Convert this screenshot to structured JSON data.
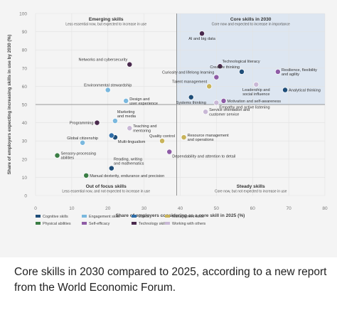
{
  "chart_data": {
    "type": "scatter",
    "title": "",
    "xlabel": "Share of employers considering as a core skill in 2025 (%)",
    "ylabel": "Share of employers expecting increasing skills in use by 2030 (%)",
    "xlim": [
      0,
      80
    ],
    "ylim": [
      0,
      100
    ],
    "x_ticks": [
      "0",
      "10",
      "20",
      "30",
      "40",
      "50",
      "60",
      "70",
      "80"
    ],
    "y_ticks": [
      "0",
      "10",
      "20",
      "30",
      "40",
      "50",
      "60",
      "70",
      "80",
      "90",
      "100"
    ],
    "grid": true,
    "legend_position": "bottom",
    "dividers": {
      "x": 39,
      "y": 50
    },
    "quadrants": [
      {
        "title": "Emerging skills",
        "subtitle": "Less essential now, but expected to increase in use",
        "pos": "top-left"
      },
      {
        "title": "Core skills in 2030",
        "subtitle": "Core now and expected to increase in importance",
        "pos": "top-right"
      },
      {
        "title": "Out of focus skills",
        "subtitle": "Less essential now, and not expected to increase in use",
        "pos": "bottom-left"
      },
      {
        "title": "Steady skills",
        "subtitle": "Core now, but not expected to increase in use",
        "pos": "bottom-right"
      }
    ],
    "categories": [
      {
        "name": "Cognitive skills",
        "color": "#1f4e79"
      },
      {
        "name": "Engagement skills",
        "color": "#7ab8de"
      },
      {
        "name": "Ethics",
        "color": "#2f6ea8"
      },
      {
        "name": "Management skills",
        "color": "#c8b35a"
      },
      {
        "name": "Physical abilities",
        "color": "#3a7d44"
      },
      {
        "name": "Self-efficacy",
        "color": "#8e5ca6"
      },
      {
        "name": "Technology skills",
        "color": "#4a2a4e"
      },
      {
        "name": "Working with others",
        "color": "#c9b8d6"
      }
    ],
    "points": [
      {
        "label": "AI and big data",
        "x": 46,
        "y": 89,
        "category": "Technology skills",
        "label_pos": "below"
      },
      {
        "label": "Technological literacy",
        "x": 51,
        "y": 71,
        "category": "Technology skills",
        "label_pos": "above-right"
      },
      {
        "label": "Networks and cybersecurity",
        "x": 26,
        "y": 72,
        "category": "Technology skills",
        "label_pos": "above-left"
      },
      {
        "label": "Creative thinking",
        "x": 57,
        "y": 68,
        "category": "Cognitive skills",
        "label_pos": "above-left"
      },
      {
        "label": "Resilience, flexibility\nand agility",
        "x": 67,
        "y": 68,
        "category": "Self-efficacy",
        "label_pos": "right"
      },
      {
        "label": "Curiosity and lifelong learning",
        "x": 50,
        "y": 65,
        "category": "Self-efficacy",
        "label_pos": "above-left"
      },
      {
        "label": "Talent management",
        "x": 48,
        "y": 60,
        "category": "Management skills",
        "label_pos": "above-left"
      },
      {
        "label": "Leadership and\nsocial influence",
        "x": 61,
        "y": 61,
        "category": "Working with others",
        "label_pos": "below"
      },
      {
        "label": "Analytical thinking",
        "x": 69,
        "y": 58,
        "category": "Cognitive skills",
        "label_pos": "right"
      },
      {
        "label": "Environmental stewardship",
        "x": 20,
        "y": 58,
        "category": "Engagement skills",
        "label_pos": "above"
      },
      {
        "label": "Design and\nuser experience",
        "x": 25,
        "y": 52,
        "category": "Engagement skills",
        "label_pos": "right"
      },
      {
        "label": "Systems thinking",
        "x": 43,
        "y": 54,
        "category": "Cognitive skills",
        "label_pos": "below"
      },
      {
        "label": "Motivation and self-awareness",
        "x": 52,
        "y": 52,
        "category": "Self-efficacy",
        "label_pos": "right"
      },
      {
        "label": "Empathy and active listening",
        "x": 50,
        "y": 51,
        "category": "Working with others",
        "label_pos": "below-right"
      },
      {
        "label": "Service orientation and\ncustomer service",
        "x": 47,
        "y": 46,
        "category": "Working with others",
        "label_pos": "right"
      },
      {
        "label": "Programming",
        "x": 17,
        "y": 40,
        "category": "Technology skills",
        "label_pos": "left"
      },
      {
        "label": "Marketing\nand media",
        "x": 22,
        "y": 41,
        "category": "Engagement skills",
        "label_pos": "above-right"
      },
      {
        "label": "Teaching and\nmentoring",
        "x": 26,
        "y": 37,
        "category": "Working with others",
        "label_pos": "right"
      },
      {
        "label": "Global citizenship",
        "x": 13,
        "y": 29,
        "category": "Engagement skills",
        "label_pos": "above"
      },
      {
        "label": "Quality control",
        "x": 35,
        "y": 30,
        "category": "Management skills",
        "label_pos": "above"
      },
      {
        "label": "Resource management\nand operations",
        "x": 41,
        "y": 32,
        "category": "Management skills",
        "label_pos": "right"
      },
      {
        "label": "Multi-lingualism",
        "x": 22,
        "y": 32,
        "category": "Cognitive skills",
        "label_pos": "below-right"
      },
      {
        "label": "",
        "x": 21,
        "y": 33,
        "category": "Ethics",
        "label_pos": "none"
      },
      {
        "label": "Sensory-processing\nabilities",
        "x": 6,
        "y": 22,
        "category": "Physical abilities",
        "label_pos": "right"
      },
      {
        "label": "Dependability and attention to detail",
        "x": 37,
        "y": 24,
        "category": "Self-efficacy",
        "label_pos": "below-right"
      },
      {
        "label": "Reading, writing\nand mathematics",
        "x": 21,
        "y": 15,
        "category": "Cognitive skills",
        "label_pos": "above-right"
      },
      {
        "label": "Manual dexterity, endurance and precision",
        "x": 14,
        "y": 11,
        "category": "Physical abilities",
        "label_pos": "right"
      }
    ]
  },
  "caption": "Core skills in 2030 compared to 2025, according to a new report from the World Economic Forum."
}
